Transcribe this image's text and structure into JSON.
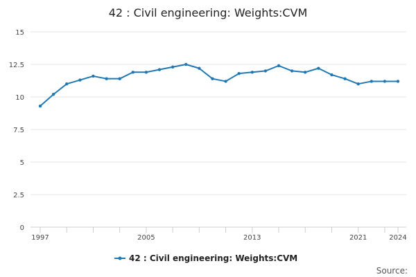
{
  "chart_data": {
    "type": "line",
    "title": "42 : Civil engineering: Weights:CVM",
    "xlabel": "",
    "ylabel": "",
    "x": [
      1997,
      1998,
      1999,
      2000,
      2001,
      2002,
      2003,
      2004,
      2005,
      2006,
      2007,
      2008,
      2009,
      2010,
      2011,
      2012,
      2013,
      2014,
      2015,
      2016,
      2017,
      2018,
      2019,
      2020,
      2021,
      2022,
      2023,
      2024
    ],
    "series": [
      {
        "name": "42 : Civil engineering: Weights:CVM",
        "color": "#1f78b4",
        "values": [
          9.3,
          10.2,
          11.0,
          11.3,
          11.6,
          11.4,
          11.4,
          11.9,
          11.9,
          12.1,
          12.3,
          12.5,
          12.2,
          11.4,
          11.2,
          11.8,
          11.9,
          12.0,
          12.4,
          12.0,
          11.9,
          12.2,
          11.7,
          11.4,
          11.0,
          11.2,
          11.2,
          11.2
        ]
      }
    ],
    "ylim": [
      0,
      15
    ],
    "yticks": [
      0,
      2.5,
      5,
      7.5,
      10,
      12.5,
      15
    ],
    "ytick_labels": [
      "0",
      "2.5",
      "5",
      "7.5",
      "10",
      "12.5",
      "15"
    ],
    "xlim": [
      1997,
      2024
    ],
    "xticks_labeled": [
      1997,
      2005,
      2013,
      2021,
      2024
    ],
    "xtick_labels": [
      "1997",
      "2005",
      "2013",
      "2021",
      "2024"
    ],
    "xticks_minor": [
      1997,
      1999,
      2001,
      2003,
      2005,
      2007,
      2009,
      2011,
      2013,
      2015,
      2017,
      2019,
      2021,
      2023,
      2024
    ],
    "grid": true,
    "legend_position": "bottom-center",
    "source_text": "Source:"
  }
}
